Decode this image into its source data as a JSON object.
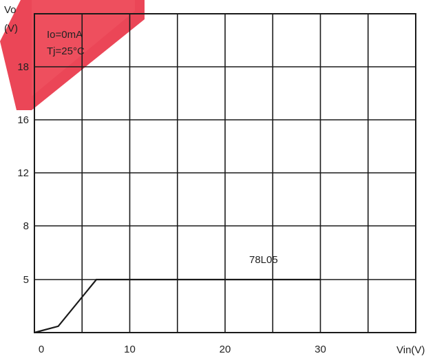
{
  "chart_data": {
    "type": "line",
    "title": "",
    "xlabel": "Vin(V)",
    "ylabel_lines": [
      "Vo",
      "(V)"
    ],
    "annotations": [
      "Io=0mA",
      "Tj=25°C"
    ],
    "series_label": "78L05",
    "x_ticks": [
      "0",
      "10",
      "20",
      "30"
    ],
    "y_ticks": [
      "5",
      "8",
      "12",
      "16",
      "18"
    ],
    "xlim": [
      0,
      40
    ],
    "grid": true,
    "series": [
      {
        "x": [
          0,
          2.5,
          6.5,
          30
        ],
        "y": [
          0,
          0.6,
          5,
          5
        ]
      }
    ],
    "colors": {
      "line": "#1a1a1a",
      "grid": "#1a1a1a",
      "watermark": "#e8263a"
    }
  }
}
